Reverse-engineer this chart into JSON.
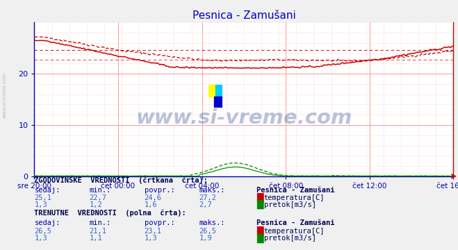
{
  "title": "Pesnica - Zamušani",
  "title_color": "#0000cc",
  "bg_color": "#f0f0f0",
  "plot_bg_color": "#ffffff",
  "grid_color_major": "#ff9999",
  "grid_color_minor": "#ffdddd",
  "xlabel_color": "#0000aa",
  "ylabel_color": "#0000aa",
  "x_tick_labels": [
    "sre 20:00",
    "čet 00:00",
    "čet 04:00",
    "čet 08:00",
    "čet 12:00",
    "čet 16:00"
  ],
  "x_tick_positions": [
    0,
    48,
    96,
    144,
    192,
    240
  ],
  "y_ticks": [
    0,
    10,
    20
  ],
  "ylim": [
    0,
    30
  ],
  "xlim": [
    0,
    240
  ],
  "n_points": 289,
  "temp_color": "#cc0000",
  "flow_hist_color": "#008800",
  "flow_curr_color": "#009900",
  "hist_avg_temp": 24.6,
  "hist_min_temp": 22.7,
  "hist_max_temp": 27.2,
  "hist_sedaj_temp": 25.1,
  "curr_avg_temp": 23.1,
  "curr_min_temp": 21.1,
  "curr_max_temp": 26.5,
  "curr_sedaj_temp": 26.5,
  "hist_avg_flow": 1.6,
  "hist_min_flow": 1.2,
  "hist_max_flow": 2.7,
  "hist_sedaj_flow": 1.3,
  "curr_avg_flow": 1.3,
  "curr_min_flow": 1.1,
  "curr_max_flow": 1.9,
  "curr_sedaj_flow": 1.3,
  "watermark_text": "www.si-vreme.com",
  "watermark_color": "#1a3a8a",
  "watermark_alpha": 0.3,
  "side_label": "www.si-vreme.com",
  "side_label_color": "#bbbbbb",
  "legend_section1": "ZGODOVINSKE  VREDNOSTI  (črtkana  črta):",
  "legend_section2": "TRENUTNE  VREDNOSTI  (polna  črta):",
  "station_name": "Pesnica - Zamušani",
  "label_temp": "temperatura[C]",
  "label_flow": "pretok[m3/s]",
  "col_headers": [
    "sedaj:",
    "min.:",
    "povpr.:",
    "maks.:"
  ]
}
